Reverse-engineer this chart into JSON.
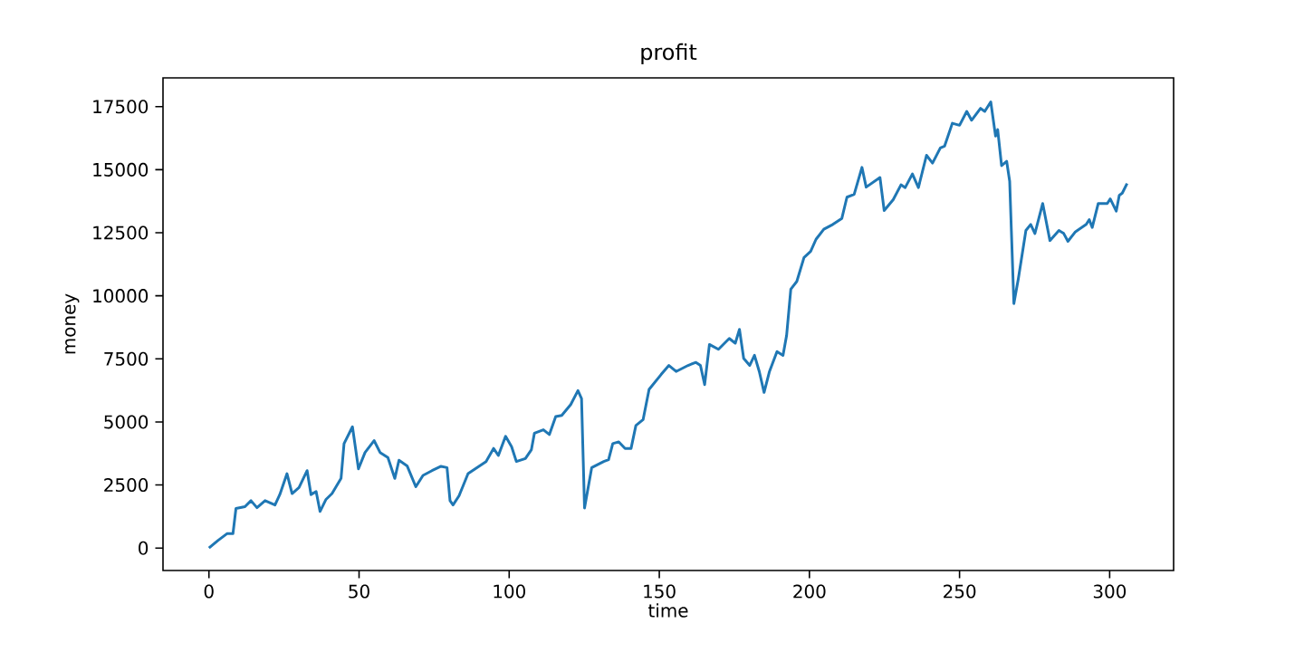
{
  "chart_data": {
    "type": "line",
    "title": "profit",
    "xlabel": "time",
    "ylabel": "money",
    "xlim": [
      -15.3,
      321.3
    ],
    "ylim": [
      -890,
      18640
    ],
    "xticks": [
      0,
      50,
      100,
      150,
      200,
      250,
      300
    ],
    "yticks": [
      0,
      2500,
      5000,
      7500,
      10000,
      12500,
      15000,
      17500
    ],
    "grid": false,
    "marker": "none",
    "line_style": "solid",
    "series": [
      {
        "color": "#1f77b4",
        "x": [
          0,
          3,
          6,
          8,
          9,
          12,
          14,
          16,
          18.7,
          22,
          23.6,
          26,
          27.7,
          30,
          32.7,
          34,
          35.7,
          37,
          39,
          41,
          44,
          45,
          47.8,
          49.8,
          52,
          55,
          57,
          59.6,
          61.9,
          63.3,
          66,
          68.9,
          71.3,
          74.3,
          77.3,
          79.3,
          80.3,
          81.3,
          83.3,
          86.3,
          89.3,
          92.3,
          94.8,
          96.4,
          98.8,
          100.8,
          102.4,
          105.4,
          107.4,
          108.4,
          111.4,
          113.4,
          115.5,
          117.5,
          120.5,
          122.9,
          124.1,
          125.1,
          127.5,
          131.5,
          133.1,
          134.5,
          136.5,
          138.6,
          140.6,
          142.2,
          144.6,
          146.6,
          150.6,
          153.2,
          155.6,
          159.6,
          162.2,
          163.7,
          165.1,
          166.7,
          169.7,
          173.3,
          175.3,
          176.7,
          178.1,
          180.1,
          181.7,
          183.3,
          184.9,
          186.7,
          189.2,
          191.2,
          192.4,
          193.8,
          195.8,
          198.2,
          200.4,
          202.2,
          204.8,
          207.8,
          210.8,
          212.5,
          214.9,
          217.5,
          218.9,
          223.5,
          224.9,
          227.9,
          230.5,
          231.9,
          234.3,
          236.3,
          239,
          241,
          243.6,
          245,
          247.6,
          250,
          252.4,
          254,
          257,
          258.4,
          260.4,
          262,
          262.7,
          264,
          265.7,
          266.7,
          268.1,
          269.6,
          272.1,
          273.7,
          275.1,
          277.7,
          280.1,
          283.1,
          284.7,
          286.1,
          288.6,
          292.2,
          293.2,
          294.2,
          296.2,
          299.2,
          300.2,
          302.2,
          303.2,
          304.2,
          305.8
        ],
        "values": [
          0,
          300,
          570,
          570,
          1570,
          1640,
          1880,
          1600,
          1880,
          1710,
          2120,
          2950,
          2160,
          2400,
          3070,
          2120,
          2240,
          1450,
          1930,
          2160,
          2760,
          4140,
          4810,
          3140,
          3790,
          4260,
          3790,
          3590,
          2760,
          3480,
          3260,
          2430,
          2880,
          3070,
          3240,
          3190,
          1880,
          1710,
          2070,
          2950,
          3190,
          3430,
          3950,
          3670,
          4430,
          4020,
          3430,
          3550,
          3900,
          4550,
          4690,
          4500,
          5210,
          5260,
          5690,
          6240,
          5930,
          1590,
          3190,
          3430,
          3500,
          4140,
          4210,
          3950,
          3950,
          4860,
          5090,
          6290,
          6880,
          7240,
          7000,
          7240,
          7360,
          7240,
          6480,
          8070,
          7880,
          8310,
          8120,
          8670,
          7520,
          7240,
          7640,
          7000,
          6170,
          7000,
          7790,
          7640,
          8430,
          10260,
          10570,
          11520,
          11760,
          12240,
          12640,
          12830,
          13070,
          13910,
          14020,
          15090,
          14310,
          14690,
          13380,
          13810,
          14400,
          14290,
          14830,
          14290,
          15570,
          15260,
          15860,
          15930,
          16840,
          16760,
          17310,
          16960,
          17430,
          17310,
          17690,
          16330,
          16590,
          15160,
          15330,
          14540,
          9690,
          10690,
          12590,
          12830,
          12470,
          13660,
          12190,
          12590,
          12470,
          12160,
          12540,
          12830,
          13020,
          12710,
          13660,
          13660,
          13840,
          13360,
          13980,
          14070,
          14450
        ]
      }
    ]
  }
}
